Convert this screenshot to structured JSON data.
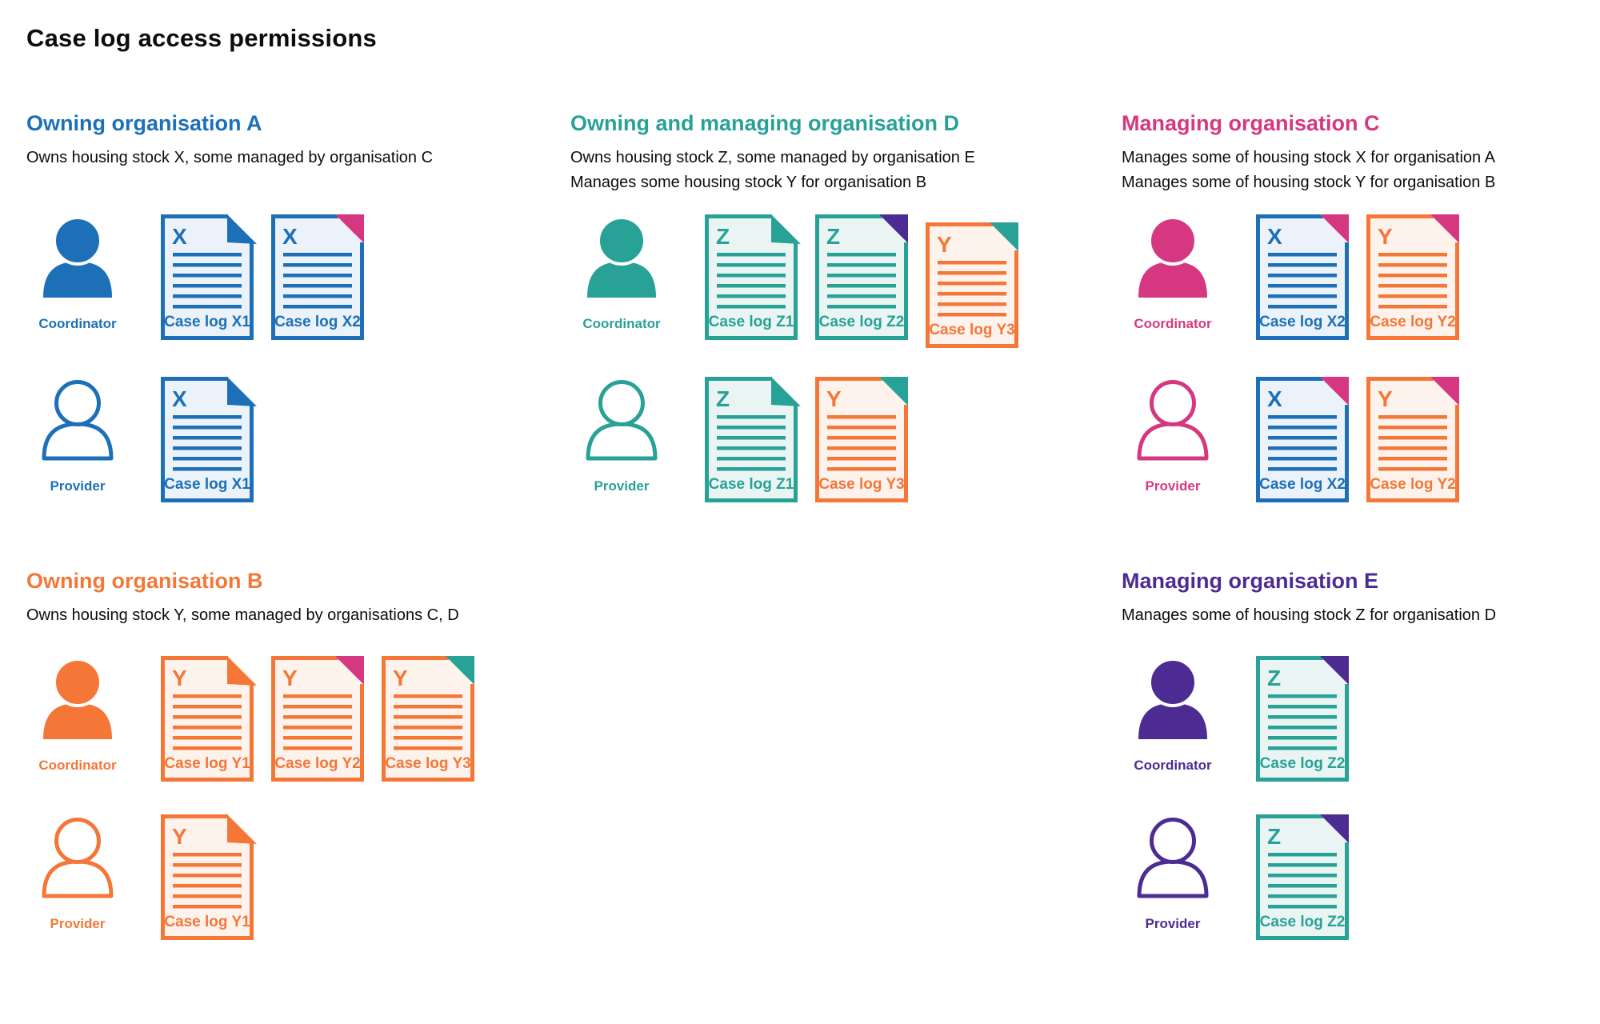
{
  "page_title": "Case log access permissions",
  "colors": {
    "blue": "#1d70b8",
    "blue_bg": "#ebf2f9",
    "teal": "#28a197",
    "teal_bg": "#eaf5f3",
    "pink": "#d53880",
    "pink_bg": "#fbeaf2",
    "orange": "#f47738",
    "orange_bg": "#fef3ec",
    "purple": "#4c2c92",
    "purple_bg": "#ece9f3",
    "text": "#0b0c0c"
  },
  "sections": [
    {
      "id": "org-a",
      "title": "Owning organisation A",
      "color": "blue",
      "description": [
        "Owns housing stock X, some managed by organisation C"
      ],
      "rows": [
        {
          "role": "Coordinator",
          "person_style": "filled",
          "docs": [
            {
              "letter": "X",
              "label": "Case log X1",
              "doc_color": "blue",
              "fold_color": "blue"
            },
            {
              "letter": "X",
              "label": "Case log X2",
              "doc_color": "blue",
              "fold_color": "pink"
            }
          ]
        },
        {
          "role": "Provider",
          "person_style": "outline",
          "docs": [
            {
              "letter": "X",
              "label": "Case log X1",
              "doc_color": "blue",
              "fold_color": "blue"
            }
          ]
        }
      ]
    },
    {
      "id": "org-d",
      "title": "Owning and managing organisation D",
      "color": "teal",
      "description": [
        "Owns housing stock Z, some managed by organisation E",
        "Manages some housing stock Y for organisation B"
      ],
      "rows": [
        {
          "role": "Coordinator",
          "person_style": "filled",
          "docs": [
            {
              "letter": "Z",
              "label": "Case log Z1",
              "doc_color": "teal",
              "fold_color": "teal"
            },
            {
              "letter": "Z",
              "label": "Case log Z2",
              "doc_color": "teal",
              "fold_color": "purple"
            },
            {
              "letter": "Y",
              "label": "Case log Y3",
              "doc_color": "orange",
              "fold_color": "teal",
              "offset_down": true
            }
          ]
        },
        {
          "role": "Provider",
          "person_style": "outline",
          "docs": [
            {
              "letter": "Z",
              "label": "Case log Z1",
              "doc_color": "teal",
              "fold_color": "teal"
            },
            {
              "letter": "Y",
              "label": "Case log Y3",
              "doc_color": "orange",
              "fold_color": "teal"
            }
          ]
        }
      ]
    },
    {
      "id": "org-c",
      "title": "Managing organisation C",
      "color": "pink",
      "description": [
        "Manages some of housing stock X for organisation A",
        "Manages some of housing stock Y for organisation B"
      ],
      "rows": [
        {
          "role": "Coordinator",
          "person_style": "filled",
          "docs": [
            {
              "letter": "X",
              "label": "Case log X2",
              "doc_color": "blue",
              "fold_color": "pink"
            },
            {
              "letter": "Y",
              "label": "Case log Y2",
              "doc_color": "orange",
              "fold_color": "pink"
            }
          ]
        },
        {
          "role": "Provider",
          "person_style": "outline",
          "docs": [
            {
              "letter": "X",
              "label": "Case log X2",
              "doc_color": "blue",
              "fold_color": "pink"
            },
            {
              "letter": "Y",
              "label": "Case log Y2",
              "doc_color": "orange",
              "fold_color": "pink"
            }
          ]
        }
      ]
    },
    {
      "id": "org-b",
      "title": "Owning organisation B",
      "color": "orange",
      "description": [
        "Owns housing stock Y, some managed by organisations C, D"
      ],
      "rows": [
        {
          "role": "Coordinator",
          "person_style": "filled",
          "docs": [
            {
              "letter": "Y",
              "label": "Case log Y1",
              "doc_color": "orange",
              "fold_color": "orange"
            },
            {
              "letter": "Y",
              "label": "Case log Y2",
              "doc_color": "orange",
              "fold_color": "pink"
            },
            {
              "letter": "Y",
              "label": "Case log Y3",
              "doc_color": "orange",
              "fold_color": "teal"
            }
          ]
        },
        {
          "role": "Provider",
          "person_style": "outline",
          "docs": [
            {
              "letter": "Y",
              "label": "Case log Y1",
              "doc_color": "orange",
              "fold_color": "orange"
            }
          ]
        }
      ]
    },
    {
      "id": "org-e",
      "title": "Managing organisation E",
      "color": "purple",
      "description": [
        "Manages some of housing stock Z for organisation D"
      ],
      "rows": [
        {
          "role": "Coordinator",
          "person_style": "filled",
          "docs": [
            {
              "letter": "Z",
              "label": "Case log Z2",
              "doc_color": "teal",
              "fold_color": "purple"
            }
          ]
        },
        {
          "role": "Provider",
          "person_style": "outline",
          "docs": [
            {
              "letter": "Z",
              "label": "Case log Z2",
              "doc_color": "teal",
              "fold_color": "purple"
            }
          ]
        }
      ]
    }
  ]
}
